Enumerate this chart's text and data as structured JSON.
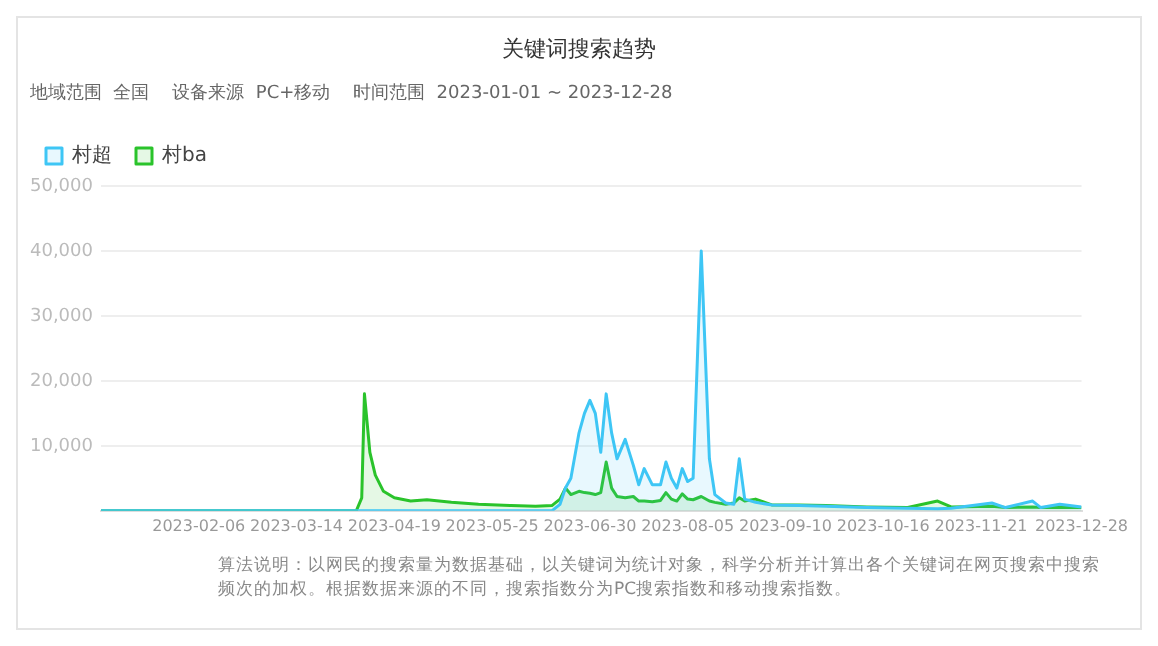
{
  "chart_data": {
    "type": "area",
    "title": "关键词搜索趋势",
    "subtitle": "地域范围  全国    设备来源  PC+移动    时间范围  2023-01-01 ~ 2023-12-28",
    "annotations": [
      "算法说明：以网民的搜索量为数据基础，以关键词为统计对象，科学分析并计算出各个关键词在网页搜索中搜索频次的加权。根据数据来源的不同，搜索指数分为PC搜索指数和移动搜索指数。"
    ],
    "x": [
      "2023-01-01",
      "2023-02-01",
      "2023-03-01",
      "2023-04-05",
      "2023-04-07",
      "2023-04-08",
      "2023-04-10",
      "2023-04-12",
      "2023-04-15",
      "2023-04-19",
      "2023-04-25",
      "2023-05-01",
      "2023-05-10",
      "2023-05-20",
      "2023-06-01",
      "2023-06-10",
      "2023-06-16",
      "2023-06-19",
      "2023-06-21",
      "2023-06-23",
      "2023-06-26",
      "2023-06-28",
      "2023-06-30",
      "2023-07-02",
      "2023-07-04",
      "2023-07-06",
      "2023-07-08",
      "2023-07-10",
      "2023-07-13",
      "2023-07-16",
      "2023-07-18",
      "2023-07-20",
      "2023-07-23",
      "2023-07-26",
      "2023-07-28",
      "2023-07-30",
      "2023-08-01",
      "2023-08-03",
      "2023-08-05",
      "2023-08-07",
      "2023-08-10",
      "2023-08-13",
      "2023-08-15",
      "2023-08-19",
      "2023-08-22",
      "2023-08-24",
      "2023-08-26",
      "2023-08-30",
      "2023-09-05",
      "2023-09-15",
      "2023-09-25",
      "2023-10-10",
      "2023-10-25",
      "2023-11-05",
      "2023-11-10",
      "2023-11-25",
      "2023-11-30",
      "2023-12-10",
      "2023-12-13",
      "2023-12-20",
      "2023-12-28"
    ],
    "series": [
      {
        "name": "村超",
        "color": "#3ec6f5",
        "values": [
          0,
          0,
          0,
          0,
          0,
          0,
          0,
          0,
          0,
          0,
          0,
          0,
          0,
          0,
          0,
          0,
          0,
          1000,
          3500,
          5000,
          12000,
          15000,
          17000,
          15000,
          9000,
          18000,
          12000,
          8000,
          11000,
          7000,
          4000,
          6500,
          4000,
          4000,
          7500,
          5000,
          3500,
          6500,
          4500,
          5000,
          40000,
          8000,
          2500,
          1200,
          1000,
          8000,
          1800,
          1300,
          900,
          800,
          700,
          500,
          400,
          300,
          400,
          1200,
          500,
          1500,
          500,
          1000,
          600
        ]
      },
      {
        "name": "村ba",
        "color": "#2ac32b",
        "values": [
          0,
          0,
          0,
          0,
          2000,
          18000,
          9000,
          5500,
          3000,
          2000,
          1500,
          1700,
          1300,
          1000,
          800,
          700,
          800,
          1800,
          3500,
          2500,
          3000,
          2800,
          2700,
          2500,
          2800,
          7500,
          3500,
          2200,
          2000,
          2200,
          1500,
          1500,
          1400,
          1600,
          2800,
          1800,
          1500,
          2600,
          1800,
          1700,
          2200,
          1500,
          1300,
          1000,
          1200,
          2000,
          1500,
          1800,
          900,
          900,
          800,
          600,
          500,
          1500,
          600,
          700,
          500,
          600,
          500,
          500,
          500
        ]
      }
    ],
    "xlim": [
      "2023-01-01",
      "2023-12-28"
    ],
    "xticks": [
      "2023-02-06",
      "2023-03-14",
      "2023-04-19",
      "2023-05-25",
      "2023-06-30",
      "2023-08-05",
      "2023-09-10",
      "2023-10-16",
      "2023-11-21",
      "2023-12-28"
    ],
    "ylim": [
      0,
      50000
    ],
    "yticks": [
      {
        "value": 10000,
        "label": "10,000"
      },
      {
        "value": 20000,
        "label": "20,000"
      },
      {
        "value": 30000,
        "label": "30,000"
      },
      {
        "value": 40000,
        "label": "40,000"
      },
      {
        "value": 50000,
        "label": "50,000"
      }
    ],
    "grid": "y",
    "legend": "top left",
    "marker": "none",
    "line_style": "solid"
  }
}
